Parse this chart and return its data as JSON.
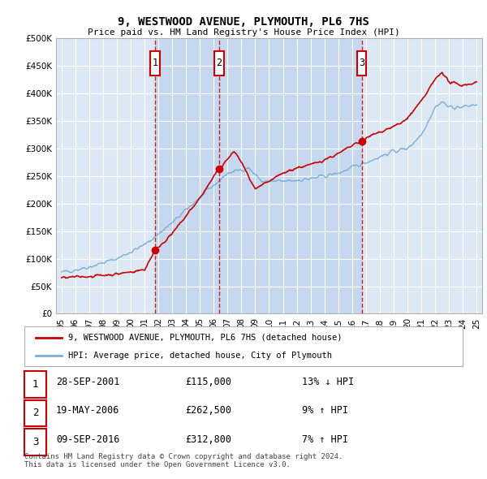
{
  "title": "9, WESTWOOD AVENUE, PLYMOUTH, PL6 7HS",
  "subtitle": "Price paid vs. HM Land Registry's House Price Index (HPI)",
  "plot_bg_color": "#dce9f5",
  "shaded_bg_color": "#c5d8ef",
  "ylim": [
    0,
    500000
  ],
  "yticks": [
    0,
    50000,
    100000,
    150000,
    200000,
    250000,
    300000,
    350000,
    400000,
    450000,
    500000
  ],
  "sale_dates": [
    2001.74,
    2006.38,
    2016.69
  ],
  "sale_prices": [
    115000,
    262500,
    312800
  ],
  "sale_labels": [
    "1",
    "2",
    "3"
  ],
  "legend_house": "9, WESTWOOD AVENUE, PLYMOUTH, PL6 7HS (detached house)",
  "legend_hpi": "HPI: Average price, detached house, City of Plymouth",
  "table_rows": [
    [
      "1",
      "28-SEP-2001",
      "£115,000",
      "13% ↓ HPI"
    ],
    [
      "2",
      "19-MAY-2006",
      "£262,500",
      "9% ↑ HPI"
    ],
    [
      "3",
      "09-SEP-2016",
      "£312,800",
      "7% ↑ HPI"
    ]
  ],
  "footnote": "Contains HM Land Registry data © Crown copyright and database right 2024.\nThis data is licensed under the Open Government Licence v3.0.",
  "hpi_color": "#7bafd4",
  "house_color": "#cc0000",
  "vline_color": "#cc0000",
  "label_box_color": "#cc0000",
  "grid_color": "#ffffff",
  "spine_color": "#b0b0b0"
}
